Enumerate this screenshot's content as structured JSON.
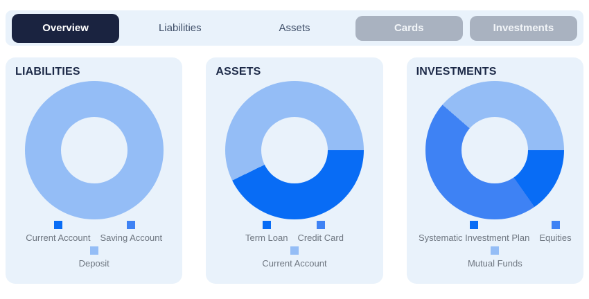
{
  "tabs": [
    {
      "label": "Overview",
      "state": "active"
    },
    {
      "label": "Liabilities",
      "state": "link"
    },
    {
      "label": "Assets",
      "state": "link"
    },
    {
      "label": "Cards",
      "state": "disabled"
    },
    {
      "label": "Investments",
      "state": "disabled"
    }
  ],
  "colors": {
    "accent_navy": "#1a2340",
    "bar_and_card_bg": "#e9f2fb",
    "disabled_gray": "#a9b2c0",
    "bright_blue": "#086cf5",
    "medium_blue": "#3e82f4",
    "light_blue": "#94bdf6",
    "legend_text": "#6e7680",
    "title_text": "#1c2947"
  },
  "cards": [
    {
      "title": "LIABILITIES",
      "legend": [
        {
          "label": "Current Account",
          "color": "#086cf5"
        },
        {
          "label": "Saving Account",
          "color": "#3e82f4"
        },
        {
          "label": "Deposit",
          "color": "#94bdf6"
        }
      ],
      "segments": [
        {
          "color": "#94bdf6",
          "from": 0,
          "to": 360
        }
      ]
    },
    {
      "title": "ASSETS",
      "legend": [
        {
          "label": "Term Loan",
          "color": "#086cf5"
        },
        {
          "label": "Credit Card",
          "color": "#3e82f4"
        },
        {
          "label": "Current Account",
          "color": "#94bdf6"
        }
      ],
      "segments": [
        {
          "color": "#94bdf6",
          "from": 0,
          "to": 90
        },
        {
          "color": "#086cf5",
          "from": 90,
          "to": 244
        },
        {
          "color": "#94bdf6",
          "from": 244,
          "to": 360
        }
      ]
    },
    {
      "title": "INVESTMENTS",
      "legend": [
        {
          "label": "Systematic Investment Plan",
          "color": "#086cf5"
        },
        {
          "label": "Equities",
          "color": "#3e82f4"
        },
        {
          "label": "Mutual Funds",
          "color": "#94bdf6"
        }
      ],
      "segments": [
        {
          "color": "#94bdf6",
          "from": 0,
          "to": 90
        },
        {
          "color": "#086cf5",
          "from": 90,
          "to": 145
        },
        {
          "color": "#3e82f4",
          "from": 145,
          "to": 311
        },
        {
          "color": "#94bdf6",
          "from": 311,
          "to": 360
        }
      ]
    }
  ],
  "chart_data": [
    {
      "type": "pie",
      "subtype": "donut",
      "title": "LIABILITIES",
      "labels": [
        "Current Account",
        "Saving Account",
        "Deposit"
      ],
      "values_percent": [
        0,
        0,
        100
      ],
      "colors": [
        "#086cf5",
        "#3e82f4",
        "#94bdf6"
      ],
      "hole_ratio": 0.48,
      "legend_position": "bottom"
    },
    {
      "type": "pie",
      "subtype": "donut",
      "title": "ASSETS",
      "labels": [
        "Term Loan",
        "Credit Card",
        "Current Account"
      ],
      "values_percent": [
        42.8,
        0,
        57.2
      ],
      "colors": [
        "#086cf5",
        "#3e82f4",
        "#94bdf6"
      ],
      "start_angle_deg_clockwise_from_top": 90,
      "hole_ratio": 0.48,
      "legend_position": "bottom"
    },
    {
      "type": "pie",
      "subtype": "donut",
      "title": "INVESTMENTS",
      "labels": [
        "Systematic Investment Plan",
        "Equities",
        "Mutual Funds"
      ],
      "values_percent": [
        15.4,
        46.1,
        38.5
      ],
      "colors": [
        "#086cf5",
        "#3e82f4",
        "#94bdf6"
      ],
      "start_angle_deg_clockwise_from_top": 90,
      "hole_ratio": 0.48,
      "legend_position": "bottom"
    }
  ]
}
